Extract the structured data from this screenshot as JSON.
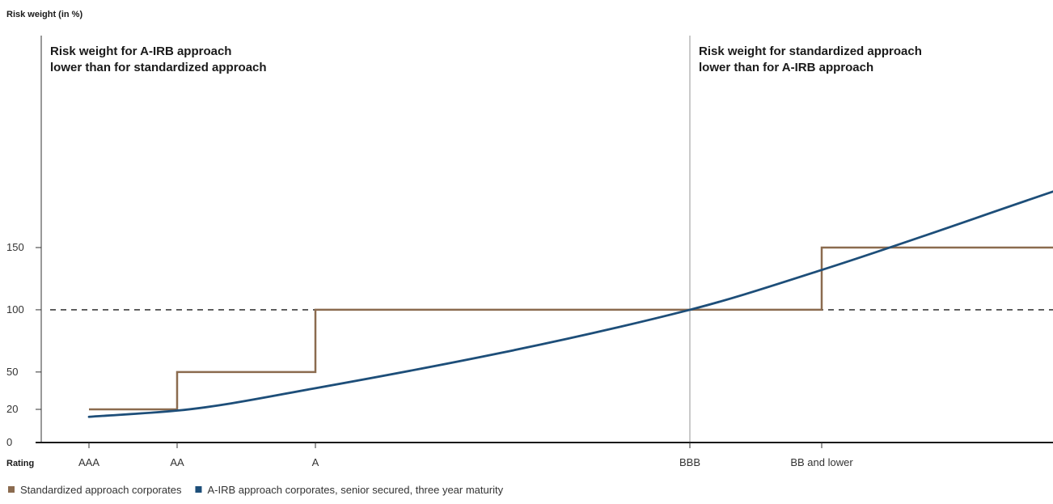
{
  "chart_data": {
    "type": "line",
    "ylabel": "Risk weight (in %)",
    "xlabel": "Rating",
    "categories": [
      "AAA",
      "AA",
      "A",
      "BBB",
      "BB and lower"
    ],
    "yticks": [
      0,
      20,
      50,
      100,
      150
    ],
    "ylim": [
      0,
      200
    ],
    "reference_line": {
      "y": 100,
      "style": "dashed"
    },
    "divider_at": "BBB",
    "regions": [
      {
        "side": "left",
        "lines": [
          "Risk weight for A-IRB approach",
          "lower than for standardized approach"
        ]
      },
      {
        "side": "right",
        "lines": [
          "Risk weight for standardized approach",
          "lower than for A-IRB approach"
        ]
      }
    ],
    "series": [
      {
        "name": "Standardized approach corporates",
        "color": "#8b6b4f",
        "kind": "step",
        "segments": [
          {
            "from": "AAA",
            "to": "AA",
            "y": 20
          },
          {
            "from": "AA",
            "to": "A",
            "y": 50
          },
          {
            "from": "A",
            "to": "BB and lower",
            "y": 100
          },
          {
            "from": "BB and lower",
            "to": "end",
            "y": 150
          }
        ]
      },
      {
        "name": "A-IRB approach corporates, senior secured, three year maturity",
        "color": "#1d4e79",
        "kind": "curve",
        "points": [
          {
            "x": "AAA",
            "y": 14
          },
          {
            "x": "AA",
            "y": 19
          },
          {
            "x": "A",
            "y": 37
          },
          {
            "x": "BBB",
            "y": 100
          },
          {
            "x": "BB and lower",
            "y": 132
          },
          {
            "x": "end",
            "y": 195
          }
        ]
      }
    ]
  }
}
